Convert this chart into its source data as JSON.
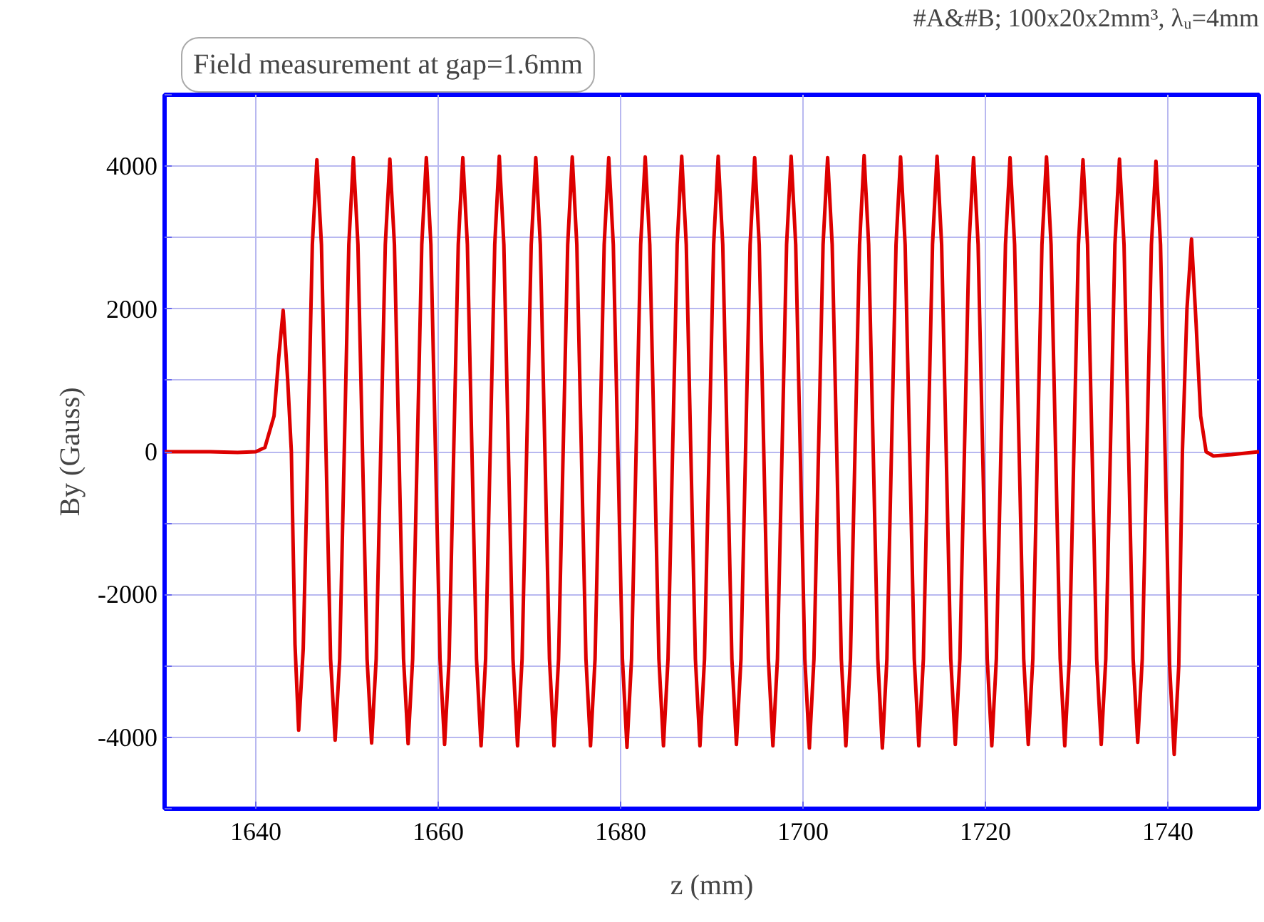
{
  "chart_data": {
    "type": "line",
    "title": "Field measurement at gap=1.6mm",
    "subtitle": "#A&#B; 100x20x2mm³, λᵤ=4mm",
    "xlabel": "z (mm)",
    "ylabel": "By (Gauss)",
    "xlim": [
      1630,
      1750
    ],
    "xticks": [
      1640,
      1660,
      1680,
      1700,
      1720,
      1740
    ],
    "ylim": [
      -5000,
      5000
    ],
    "yticks": [
      {
        "value": -5000,
        "label": null
      },
      -4000,
      {
        "value": -3000,
        "label": null
      },
      -2000,
      {
        "value": -1000,
        "label": null
      },
      0,
      {
        "value": 1000,
        "label": null
      },
      2000,
      {
        "value": 3000,
        "label": null
      },
      4000,
      {
        "value": 5000,
        "label": null
      }
    ],
    "grid": true,
    "marker": "none",
    "line_style": "solid",
    "series": [
      {
        "color": "#dd0000",
        "x": [
          1630,
          1635,
          1638,
          1640,
          1641,
          1642,
          1642.5,
          1643,
          1643.5,
          1643.9,
          1644.3,
          1644.7,
          1645.2,
          1645.7,
          1646.2,
          1646.7,
          1647.2,
          1647.7,
          1648.2,
          1648.7,
          1649.2,
          1649.7,
          1650.2,
          1650.7,
          1651.2,
          1651.7,
          1652.2,
          1652.7,
          1653.2,
          1653.7,
          1654.2,
          1654.7,
          1655.2,
          1655.7,
          1656.2,
          1656.7,
          1657.2,
          1657.7,
          1658.2,
          1658.7,
          1659.2,
          1659.7,
          1660.2,
          1660.7,
          1661.2,
          1661.7,
          1662.2,
          1662.7,
          1663.2,
          1663.7,
          1664.2,
          1664.7,
          1665.2,
          1665.7,
          1666.2,
          1666.7,
          1667.2,
          1667.7,
          1668.2,
          1668.7,
          1669.2,
          1669.7,
          1670.2,
          1670.7,
          1671.2,
          1671.7,
          1672.2,
          1672.7,
          1673.2,
          1673.7,
          1674.2,
          1674.7,
          1675.2,
          1675.7,
          1676.2,
          1676.7,
          1677.2,
          1677.7,
          1678.2,
          1678.7,
          1679.2,
          1679.7,
          1680.2,
          1680.7,
          1681.2,
          1681.7,
          1682.2,
          1682.7,
          1683.2,
          1683.7,
          1684.2,
          1684.7,
          1685.2,
          1685.7,
          1686.2,
          1686.7,
          1687.2,
          1687.7,
          1688.2,
          1688.7,
          1689.2,
          1689.7,
          1690.2,
          1690.7,
          1691.2,
          1691.7,
          1692.2,
          1692.7,
          1693.2,
          1693.7,
          1694.2,
          1694.7,
          1695.2,
          1695.7,
          1696.2,
          1696.7,
          1697.2,
          1697.7,
          1698.2,
          1698.7,
          1699.2,
          1699.7,
          1700.2,
          1700.7,
          1701.2,
          1701.7,
          1702.2,
          1702.7,
          1703.2,
          1703.7,
          1704.2,
          1704.7,
          1705.2,
          1705.7,
          1706.2,
          1706.7,
          1707.2,
          1707.7,
          1708.2,
          1708.7,
          1709.2,
          1709.7,
          1710.2,
          1710.7,
          1711.2,
          1711.7,
          1712.2,
          1712.7,
          1713.2,
          1713.7,
          1714.2,
          1714.7,
          1715.2,
          1715.7,
          1716.2,
          1716.7,
          1717.2,
          1717.7,
          1718.2,
          1718.7,
          1719.2,
          1719.7,
          1720.2,
          1720.7,
          1721.2,
          1721.7,
          1722.2,
          1722.7,
          1723.2,
          1723.7,
          1724.2,
          1724.7,
          1725.2,
          1725.7,
          1726.2,
          1726.7,
          1727.2,
          1727.7,
          1728.2,
          1728.7,
          1729.2,
          1729.7,
          1730.2,
          1730.7,
          1731.2,
          1731.7,
          1732.2,
          1732.7,
          1733.2,
          1733.7,
          1734.2,
          1734.7,
          1735.2,
          1735.7,
          1736.2,
          1736.7,
          1737.2,
          1737.7,
          1738.2,
          1738.7,
          1739.2,
          1739.7,
          1740.2,
          1740.7,
          1741.2,
          1741.6,
          1742.1,
          1742.6,
          1743.1,
          1743.6,
          1744.2,
          1745,
          1747,
          1750
        ],
        "values": [
          0,
          0,
          -10,
          0,
          60,
          500,
          1300,
          1980,
          1000,
          0,
          -2700,
          -3900,
          -2760,
          0,
          2900,
          4090,
          2900,
          0,
          -2900,
          -4040,
          -2900,
          0,
          2900,
          4120,
          2900,
          0,
          -2900,
          -4080,
          -2900,
          0,
          2900,
          4100,
          2900,
          0,
          -2900,
          -4090,
          -2900,
          0,
          2900,
          4120,
          2900,
          0,
          -2900,
          -4100,
          -2900,
          0,
          2900,
          4120,
          2900,
          0,
          -2900,
          -4120,
          -2900,
          0,
          2900,
          4140,
          2900,
          0,
          -2900,
          -4120,
          -2900,
          0,
          2900,
          4120,
          2900,
          0,
          -2900,
          -4120,
          -2900,
          0,
          2900,
          4130,
          2900,
          0,
          -2900,
          -4120,
          -2900,
          0,
          2900,
          4120,
          2900,
          0,
          -2900,
          -4140,
          -2900,
          0,
          2900,
          4130,
          2900,
          0,
          -2900,
          -4120,
          -2900,
          0,
          2900,
          4140,
          2900,
          0,
          -2900,
          -4120,
          -2900,
          0,
          2900,
          4140,
          2900,
          0,
          -2900,
          -4100,
          -2900,
          0,
          2900,
          4120,
          2900,
          0,
          -2900,
          -4120,
          -2900,
          0,
          2900,
          4140,
          2900,
          0,
          -2900,
          -4150,
          -2900,
          0,
          2900,
          4120,
          2900,
          0,
          -2900,
          -4120,
          -2900,
          0,
          2900,
          4150,
          2900,
          0,
          -2900,
          -4150,
          -2900,
          0,
          2900,
          4130,
          2900,
          0,
          -2900,
          -4120,
          -2900,
          0,
          2900,
          4140,
          2900,
          0,
          -2900,
          -4100,
          -2900,
          0,
          2900,
          4120,
          2900,
          0,
          -2900,
          -4120,
          -2900,
          0,
          2900,
          4120,
          2900,
          0,
          -2900,
          -4100,
          -2900,
          0,
          2900,
          4130,
          2900,
          0,
          -2900,
          -4120,
          -2900,
          0,
          2900,
          4090,
          2900,
          0,
          -2900,
          -4100,
          -2900,
          0,
          2900,
          4100,
          2900,
          0,
          -2900,
          -4070,
          -2900,
          0,
          2900,
          4070,
          2900,
          0,
          -3000,
          -4240,
          -3000,
          0,
          2000,
          2980,
          1800,
          500,
          0,
          -60,
          -40,
          0
        ]
      }
    ]
  }
}
